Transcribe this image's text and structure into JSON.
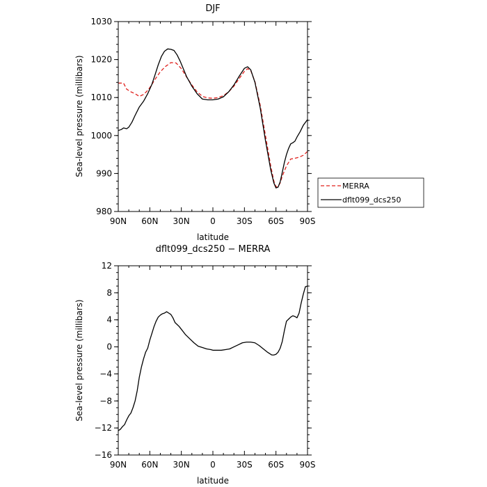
{
  "colors": {
    "merra": "#e0201c",
    "model": "#000000"
  },
  "chart_data": [
    {
      "type": "line",
      "title": "DJF",
      "xlabel": "latitude",
      "ylabel": "Sea-level pressure (millibars)",
      "xlim": [
        90,
        -90
      ],
      "ylim": [
        980,
        1030
      ],
      "xticks": [
        90,
        60,
        30,
        0,
        -30,
        -60,
        -90
      ],
      "xtick_labels": [
        "90N",
        "60N",
        "30N",
        "0",
        "30S",
        "60S",
        "90S"
      ],
      "yticks": [
        980,
        990,
        1000,
        1010,
        1020,
        1030
      ],
      "ytick_labels": [
        "980",
        "990",
        "1000",
        "1010",
        "1020",
        "1030"
      ],
      "legend": {
        "placement": "right",
        "entries": [
          "MERRA",
          "dflt099_dcs250"
        ]
      },
      "series": [
        {
          "name": "MERRA",
          "style": "dashed",
          "x": [
            90,
            85,
            82,
            78,
            74,
            70,
            66,
            63,
            60,
            55,
            50,
            45,
            40,
            35,
            30,
            25,
            20,
            15,
            10,
            5,
            0,
            -5,
            -10,
            -15,
            -20,
            -25,
            -30,
            -33,
            -36,
            -40,
            -45,
            -50,
            -55,
            -58,
            -60,
            -62,
            -64,
            -66,
            -70,
            -74,
            -78,
            -82,
            -86,
            -90
          ],
          "y": [
            1013.8,
            1013.8,
            1012.2,
            1011.5,
            1011.0,
            1010.3,
            1010.8,
            1011.6,
            1012.6,
            1014.8,
            1016.8,
            1018.2,
            1019.2,
            1019.1,
            1017.6,
            1015.4,
            1013.3,
            1011.5,
            1010.3,
            1009.9,
            1009.8,
            1010.0,
            1010.5,
            1011.5,
            1013.0,
            1015.0,
            1016.9,
            1017.6,
            1017.1,
            1014.2,
            1008.0,
            1000.0,
            992.0,
            988.0,
            986.5,
            986.6,
            987.5,
            989.3,
            992.0,
            993.8,
            994.0,
            994.3,
            994.8,
            995.8
          ]
        },
        {
          "name": "dflt099_dcs250",
          "style": "solid",
          "x": [
            90,
            87,
            85,
            82,
            80,
            77,
            74,
            70,
            66,
            62,
            58,
            55,
            52,
            49,
            46,
            43,
            40,
            37,
            34,
            31,
            28,
            25,
            20,
            15,
            10,
            5,
            0,
            -5,
            -10,
            -15,
            -20,
            -25,
            -30,
            -33,
            -36,
            -40,
            -45,
            -50,
            -55,
            -58,
            -60,
            -62,
            -64,
            -66,
            -68,
            -70,
            -72,
            -74,
            -76,
            -78,
            -80,
            -83,
            -86,
            -90
          ],
          "y": [
            1001.3,
            1001.6,
            1002.0,
            1001.8,
            1002.2,
            1003.5,
            1005.3,
            1007.5,
            1009.0,
            1011.0,
            1013.5,
            1016.0,
            1018.6,
            1020.8,
            1022.2,
            1022.8,
            1022.7,
            1022.4,
            1021.2,
            1019.5,
            1017.5,
            1015.5,
            1013.0,
            1011.0,
            1009.6,
            1009.4,
            1009.4,
            1009.6,
            1010.2,
            1011.5,
            1013.3,
            1015.6,
            1017.7,
            1018.1,
            1017.3,
            1014.0,
            1007.3,
            998.7,
            991.0,
            987.5,
            986.2,
            986.4,
            987.8,
            990.3,
            992.9,
            995.0,
            996.6,
            997.8,
            998.1,
            998.5,
            999.6,
            1001.0,
            1002.7,
            1004.2
          ]
        }
      ]
    },
    {
      "type": "line",
      "title": "dflt099_dcs250 − MERRA",
      "xlabel": "latitude",
      "ylabel": "Sea-level pressure (millibars)",
      "xlim": [
        90,
        -90
      ],
      "ylim": [
        -16,
        12
      ],
      "xticks": [
        90,
        60,
        30,
        0,
        -30,
        -60,
        -90
      ],
      "xtick_labels": [
        "90N",
        "60N",
        "30N",
        "0",
        "30S",
        "60S",
        "90S"
      ],
      "yticks": [
        -16,
        -12,
        -8,
        -4,
        0,
        4,
        8,
        12
      ],
      "ytick_labels": [
        "−16",
        "−12",
        "−8",
        "−4",
        "0",
        "4",
        "8",
        "12"
      ],
      "series": [
        {
          "style": "solid",
          "x": [
            90,
            88,
            86,
            84,
            82,
            80,
            78,
            76,
            74,
            72,
            70,
            68,
            66,
            64,
            62,
            60,
            58,
            56,
            54,
            52,
            50,
            48,
            46,
            44,
            42,
            40,
            38,
            36,
            34,
            32,
            30,
            26,
            22,
            18,
            14,
            10,
            6,
            2,
            0,
            -4,
            -8,
            -12,
            -16,
            -20,
            -24,
            -28,
            -32,
            -36,
            -40,
            -44,
            -48,
            -52,
            -56,
            -58,
            -60,
            -62,
            -64,
            -66,
            -68,
            -70,
            -72,
            -74,
            -76,
            -78,
            -80,
            -82,
            -84,
            -86,
            -88,
            -90
          ],
          "y": [
            -12.4,
            -12.2,
            -11.8,
            -11.5,
            -10.8,
            -10.2,
            -9.8,
            -9.0,
            -8.0,
            -6.5,
            -4.5,
            -3.0,
            -1.8,
            -0.8,
            -0.2,
            1.0,
            2.0,
            3.0,
            3.8,
            4.4,
            4.7,
            4.9,
            5.0,
            5.2,
            5.0,
            4.8,
            4.3,
            3.6,
            3.3,
            3.0,
            2.6,
            1.8,
            1.2,
            0.6,
            0.1,
            -0.1,
            -0.3,
            -0.4,
            -0.5,
            -0.5,
            -0.5,
            -0.4,
            -0.3,
            0.0,
            0.3,
            0.6,
            0.7,
            0.7,
            0.6,
            0.2,
            -0.3,
            -0.8,
            -1.2,
            -1.2,
            -1.1,
            -0.8,
            -0.2,
            0.8,
            2.4,
            3.8,
            4.1,
            4.4,
            4.6,
            4.5,
            4.3,
            5.0,
            6.5,
            7.8,
            8.9,
            9.0
          ]
        }
      ]
    }
  ]
}
